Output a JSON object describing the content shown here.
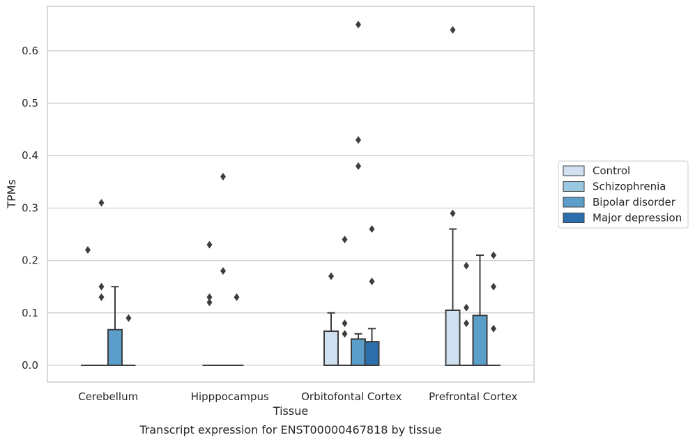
{
  "chart_data": {
    "type": "box",
    "title": "Transcript expression for ENST00000467818 by tissue",
    "xlabel": "Tissue",
    "ylabel": "TPMs",
    "ylim": [
      -0.032,
      0.685
    ],
    "yticks": [
      "0.0",
      "0.1",
      "0.2",
      "0.3",
      "0.4",
      "0.5",
      "0.6"
    ],
    "grid": true,
    "legend_placement": "center-right",
    "categories": [
      "Cerebellum",
      "Hipppocampus",
      "Orbitofontal Cortex",
      "Prefrontal Cortex"
    ],
    "series": [
      {
        "name": "Control",
        "color": "#d0e0f0",
        "boxes": [
          {
            "q1": 0,
            "median": 0,
            "q3": 0,
            "whisker_low": 0,
            "whisker_high": 0,
            "outliers": [
              0.22
            ]
          },
          {
            "q1": 0,
            "median": 0,
            "q3": 0,
            "whisker_low": 0,
            "whisker_high": 0,
            "outliers": [
              0.12,
              0.13,
              0.23
            ]
          },
          {
            "q1": 0,
            "median": 0,
            "q3": 0.065,
            "whisker_low": 0,
            "whisker_high": 0.1,
            "outliers": [
              0.17
            ]
          },
          {
            "q1": 0,
            "median": 0,
            "q3": 0.105,
            "whisker_low": 0,
            "whisker_high": 0.26,
            "outliers": [
              0.29,
              0.64
            ]
          }
        ]
      },
      {
        "name": "Schizophrenia",
        "color": "#9ac8e0",
        "boxes": [
          {
            "q1": 0,
            "median": 0,
            "q3": 0,
            "whisker_low": 0,
            "whisker_high": 0,
            "outliers": [
              0.13,
              0.15,
              0.31
            ]
          },
          {
            "q1": 0,
            "median": 0,
            "q3": 0,
            "whisker_low": 0,
            "whisker_high": 0,
            "outliers": [
              0.18,
              0.36
            ]
          },
          {
            "q1": 0,
            "median": 0,
            "q3": 0,
            "whisker_low": 0,
            "whisker_high": 0,
            "outliers": [
              0.06,
              0.08,
              0.24
            ]
          },
          {
            "q1": 0,
            "median": 0,
            "q3": 0,
            "whisker_low": 0,
            "whisker_high": 0,
            "outliers": [
              0.08,
              0.11,
              0.19
            ]
          }
        ]
      },
      {
        "name": "Bipolar disorder",
        "color": "#5a9ec9",
        "boxes": [
          {
            "q1": 0,
            "median": 0,
            "q3": 0.068,
            "whisker_low": 0,
            "whisker_high": 0.15,
            "outliers": []
          },
          {
            "q1": 0,
            "median": 0,
            "q3": 0,
            "whisker_low": 0,
            "whisker_high": 0,
            "outliers": [
              0.13
            ]
          },
          {
            "q1": 0,
            "median": 0,
            "q3": 0.05,
            "whisker_low": 0,
            "whisker_high": 0.06,
            "outliers": [
              0.38,
              0.43,
              0.65
            ]
          },
          {
            "q1": 0,
            "median": 0,
            "q3": 0.095,
            "whisker_low": 0,
            "whisker_high": 0.21,
            "outliers": []
          }
        ]
      },
      {
        "name": "Major depression",
        "color": "#2d6fad",
        "boxes": [
          {
            "q1": 0,
            "median": 0,
            "q3": 0,
            "whisker_low": 0,
            "whisker_high": 0,
            "outliers": [
              0.09
            ]
          },
          null,
          {
            "q1": 0,
            "median": 0,
            "q3": 0.045,
            "whisker_low": 0,
            "whisker_high": 0.07,
            "outliers": [
              0.16,
              0.26
            ]
          },
          {
            "q1": 0,
            "median": 0,
            "q3": 0,
            "whisker_low": 0,
            "whisker_high": 0,
            "outliers": [
              0.07,
              0.15,
              0.21
            ]
          }
        ]
      }
    ]
  }
}
